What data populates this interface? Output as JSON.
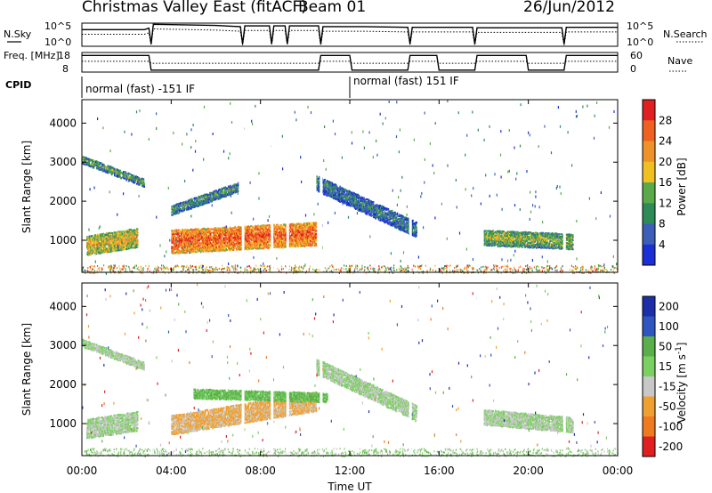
{
  "header": {
    "title": "Christmas Valley East (fitACF)",
    "beam": "Beam 01",
    "date": "26/Jun/2012"
  },
  "chart_data": [
    {
      "type": "line",
      "panel": "noise",
      "left_label": "N.Sky",
      "right_label": "N.Search",
      "left_ticks": [
        "10^5",
        "10^0"
      ],
      "right_ticks": [
        "10^5",
        "10^0"
      ],
      "description_series": [
        {
          "name": "N.Sky",
          "style": "solid"
        },
        {
          "name": "N.Search",
          "style": "dotted"
        }
      ],
      "level": [
        [
          0.0,
          0.72
        ],
        [
          2.8,
          0.72
        ],
        [
          3.0,
          0.78
        ],
        [
          3.1,
          0.1
        ],
        [
          3.2,
          0.95
        ],
        [
          6.0,
          0.9
        ],
        [
          7.1,
          0.85
        ],
        [
          7.2,
          0.1
        ],
        [
          7.3,
          0.88
        ],
        [
          8.4,
          0.88
        ],
        [
          8.5,
          0.1
        ],
        [
          8.6,
          0.88
        ],
        [
          9.1,
          0.88
        ],
        [
          9.2,
          0.1
        ],
        [
          9.3,
          0.88
        ],
        [
          10.6,
          0.88
        ],
        [
          10.7,
          0.1
        ],
        [
          10.8,
          0.85
        ],
        [
          12.6,
          0.85
        ],
        [
          14.6,
          0.82
        ],
        [
          14.7,
          0.1
        ],
        [
          14.8,
          0.82
        ],
        [
          17.5,
          0.82
        ],
        [
          17.6,
          0.1
        ],
        [
          17.7,
          0.8
        ],
        [
          21.5,
          0.8
        ],
        [
          21.6,
          0.1
        ],
        [
          21.7,
          0.82
        ],
        [
          24.0,
          0.82
        ]
      ]
    },
    {
      "type": "line",
      "panel": "frequency",
      "left_label": "Freq. [MHz]",
      "right_label": "Nave",
      "left_ticks": [
        "18",
        "8"
      ],
      "right_ticks": [
        "60",
        "0"
      ],
      "level": [
        [
          0.0,
          0.85
        ],
        [
          3.0,
          0.85
        ],
        [
          3.1,
          0.1
        ],
        [
          10.6,
          0.1
        ],
        [
          10.7,
          0.85
        ],
        [
          12.0,
          0.85
        ],
        [
          12.1,
          0.1
        ],
        [
          14.6,
          0.1
        ],
        [
          14.7,
          0.85
        ],
        [
          15.9,
          0.85
        ],
        [
          16.0,
          0.1
        ],
        [
          17.6,
          0.1
        ],
        [
          17.7,
          0.85
        ],
        [
          19.9,
          0.85
        ],
        [
          20.0,
          0.1
        ],
        [
          21.6,
          0.1
        ],
        [
          21.7,
          0.85
        ],
        [
          24.0,
          0.85
        ]
      ]
    },
    {
      "type": "table",
      "panel": "cpid",
      "label": "CPID",
      "segments": [
        {
          "text": "normal (fast) -151 IF",
          "start": 0.0,
          "end": 12.0
        },
        {
          "text": "normal (fast) 151 IF",
          "start": 12.0,
          "end": 24.0
        }
      ]
    },
    {
      "type": "heatmap",
      "panel": "power",
      "ylabel": "Slant Range [km]",
      "ylim": [
        180,
        4600
      ],
      "yticks": [
        1000,
        2000,
        3000,
        4000
      ],
      "xlim": [
        0,
        24
      ],
      "colorbar": {
        "label": "Power [dB]",
        "range": [
          0,
          32
        ],
        "ticks": [
          4,
          8,
          12,
          16,
          20,
          24,
          28
        ],
        "colors": [
          "#1a2fd6",
          "#3b5fb8",
          "#2e8b57",
          "#5aaa4a",
          "#f0c020",
          "#f0922a",
          "#f06020",
          "#e02020"
        ]
      },
      "echo_regions": [
        {
          "name": "early band",
          "start": 0.0,
          "end": 2.8,
          "r_start": 3100,
          "r_end": 2500,
          "width": 200,
          "level": 0.4
        },
        {
          "name": "near-range patch",
          "start": 0.2,
          "end": 2.5,
          "r_start": 900,
          "r_end": 1100,
          "width": 500,
          "level": 0.65
        },
        {
          "name": "morning enhancement",
          "start": 4.0,
          "end": 10.5,
          "r_start": 1000,
          "r_end": 1200,
          "width": 600,
          "level": 0.9
        },
        {
          "name": "rising band",
          "start": 4.0,
          "end": 7.0,
          "r_start": 1800,
          "r_end": 2400,
          "width": 250,
          "level": 0.35
        },
        {
          "name": "noon arc",
          "start": 10.5,
          "end": 15.0,
          "r_start": 2500,
          "r_end": 1300,
          "width": 400,
          "level": 0.3
        },
        {
          "name": "evening band",
          "start": 18.0,
          "end": 22.0,
          "r_start": 1100,
          "r_end": 1000,
          "width": 400,
          "level": 0.5
        }
      ]
    },
    {
      "type": "heatmap",
      "panel": "velocity",
      "ylabel": "Slant Range [km]",
      "xlabel": "Time UT",
      "ylim": [
        180,
        4600
      ],
      "yticks": [
        1000,
        2000,
        3000,
        4000
      ],
      "xlim": [
        0,
        24
      ],
      "xticks": [
        "00:00",
        "04:00",
        "08:00",
        "12:00",
        "16:00",
        "20:00",
        "00:00"
      ],
      "colorbar": {
        "label": "Velocity [m s^-1]",
        "ticks": [
          200,
          100,
          50,
          15,
          -15,
          -50,
          -100,
          -200
        ],
        "colors": [
          "#1d2fa8",
          "#2f56c0",
          "#59b04a",
          "#7ad060",
          "#c8c8c8",
          "#f0a030",
          "#f07a20",
          "#e02020"
        ]
      },
      "echo_regions": [
        {
          "name": "early band",
          "start": 0.0,
          "end": 2.8,
          "r_start": 3100,
          "r_end": 2500,
          "width": 200,
          "velocity": 0
        },
        {
          "name": "near-range patch",
          "start": 0.2,
          "end": 2.5,
          "r_start": 900,
          "r_end": 1100,
          "width": 500,
          "velocity": 0
        },
        {
          "name": "morning flow",
          "start": 4.0,
          "end": 10.5,
          "r_start": 1000,
          "r_end": 1600,
          "width": 500,
          "velocity": -40
        },
        {
          "name": "morning upper",
          "start": 5.0,
          "end": 11.0,
          "r_start": 1800,
          "r_end": 1700,
          "width": 250,
          "velocity": 40
        },
        {
          "name": "noon arc",
          "start": 10.5,
          "end": 15.0,
          "r_start": 2500,
          "r_end": 1300,
          "width": 400,
          "velocity": 0
        },
        {
          "name": "evening band",
          "start": 18.0,
          "end": 22.0,
          "r_start": 1200,
          "r_end": 1000,
          "width": 400,
          "velocity": 0
        }
      ]
    }
  ]
}
